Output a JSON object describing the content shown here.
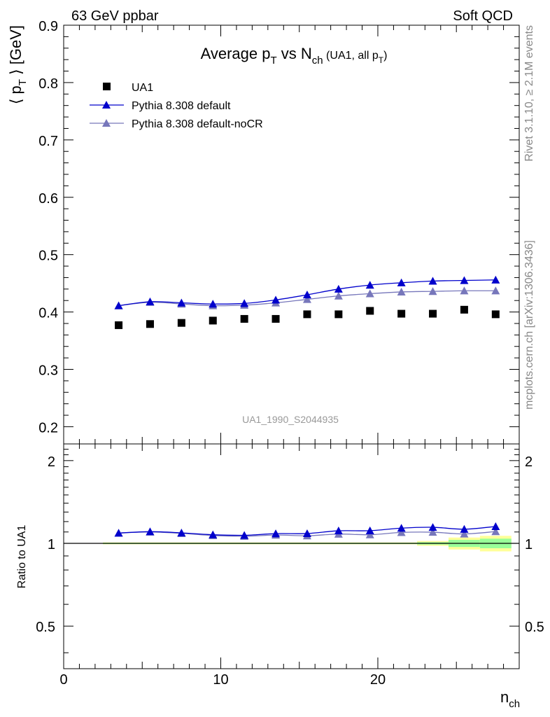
{
  "header": {
    "left": "63 GeV ppbar",
    "right": "Soft QCD"
  },
  "side_labels": {
    "rivet": "Rivet 3.1.10, ≥ 2.1M events",
    "mcplots": "mcplots.cern.ch [arXiv:1306.3436]"
  },
  "chart_data": [
    {
      "type": "scatter",
      "title": "Average p_T vs N_ch (UA1, all p_T)",
      "title_parts": {
        "a": "Average p",
        "a_sub": "T",
        "b": " vs N",
        "b_sub": "ch",
        "c": " (UA1, all p",
        "c_sub": "T",
        "d": ")"
      },
      "watermark": "UA1_1990_S2044935",
      "ylabel": "⟨ p_T ⟩ [GeV]",
      "ylabel_parts": {
        "a": "⟨ p",
        "sub": "T",
        "b": " ⟩ [GeV]"
      },
      "xlim": [
        0,
        29
      ],
      "ylim": [
        0.17,
        0.9
      ],
      "yticks": [
        0.2,
        0.3,
        0.4,
        0.5,
        0.6,
        0.7,
        0.8,
        0.9
      ],
      "ytick_labels": [
        "0.2",
        "0.3",
        "0.4",
        "0.5",
        "0.6",
        "0.7",
        "0.8",
        "0.9"
      ],
      "legend_position": "top-left",
      "x": [
        3.5,
        5.5,
        7.5,
        9.5,
        11.5,
        13.5,
        15.5,
        17.5,
        19.5,
        21.5,
        23.5,
        25.5,
        27.5
      ],
      "series": [
        {
          "name": "UA1",
          "marker": "square",
          "color": "#000000",
          "line": false,
          "values": [
            0.377,
            0.379,
            0.381,
            0.385,
            0.388,
            0.388,
            0.396,
            0.396,
            0.402,
            0.397,
            0.397,
            0.404,
            0.396
          ]
        },
        {
          "name": "Pythia 8.308 default",
          "marker": "triangle",
          "color": "#0000cc",
          "line": true,
          "values": [
            0.411,
            0.418,
            0.416,
            0.414,
            0.415,
            0.421,
            0.43,
            0.44,
            0.447,
            0.451,
            0.454,
            0.455,
            0.456
          ]
        },
        {
          "name": "Pythia 8.308 default-noCR",
          "marker": "triangle",
          "color": "#7777bb",
          "line": true,
          "values": [
            0.411,
            0.417,
            0.414,
            0.411,
            0.412,
            0.416,
            0.422,
            0.428,
            0.432,
            0.435,
            0.436,
            0.437,
            0.437
          ]
        }
      ]
    },
    {
      "type": "scatter",
      "ylabel": "Ratio to UA1",
      "xlabel": "n_ch",
      "xlabel_parts": {
        "a": "n",
        "sub": "ch"
      },
      "xlim": [
        0,
        29
      ],
      "ylim": [
        0.35,
        2.3
      ],
      "xticks": [
        0,
        10,
        20
      ],
      "xtick_labels": [
        "0",
        "10",
        "20"
      ],
      "yticks": [
        0.5,
        1,
        2
      ],
      "ytick_labels": [
        "0.5",
        "1",
        "2"
      ],
      "reference": 1,
      "bands": [
        {
          "x0": 2.5,
          "x1": 22.5,
          "stat": 0.005,
          "total": 0.008
        },
        {
          "x0": 22.5,
          "x1": 24.5,
          "stat": 0.01,
          "total": 0.02
        },
        {
          "x0": 24.5,
          "x1": 26.5,
          "stat": 0.03,
          "total": 0.05
        },
        {
          "x0": 26.5,
          "x1": 28.5,
          "stat": 0.04,
          "total": 0.065
        }
      ],
      "band_colors": {
        "stat": "#99ff99",
        "total": "#ffff99"
      },
      "x": [
        3.5,
        5.5,
        7.5,
        9.5,
        11.5,
        13.5,
        15.5,
        17.5,
        19.5,
        21.5,
        23.5,
        25.5,
        27.5
      ],
      "series": [
        {
          "name": "Pythia 8.308 default",
          "color": "#0000cc",
          "values": [
            1.09,
            1.103,
            1.092,
            1.075,
            1.07,
            1.085,
            1.086,
            1.111,
            1.112,
            1.136,
            1.144,
            1.126,
            1.152
          ]
        },
        {
          "name": "Pythia 8.308 default-noCR",
          "color": "#7777bb",
          "values": [
            1.09,
            1.1,
            1.087,
            1.068,
            1.062,
            1.072,
            1.066,
            1.081,
            1.075,
            1.096,
            1.098,
            1.082,
            1.104
          ]
        }
      ]
    }
  ]
}
